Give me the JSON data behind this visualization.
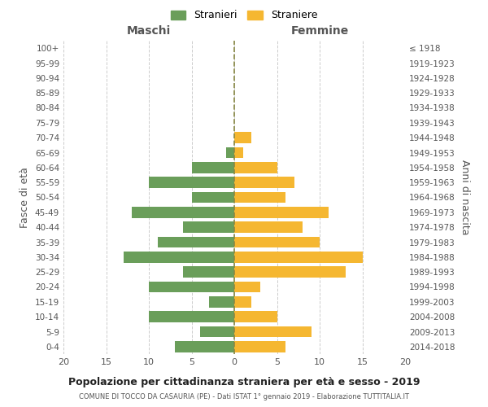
{
  "age_groups": [
    "0-4",
    "5-9",
    "10-14",
    "15-19",
    "20-24",
    "25-29",
    "30-34",
    "35-39",
    "40-44",
    "45-49",
    "50-54",
    "55-59",
    "60-64",
    "65-69",
    "70-74",
    "75-79",
    "80-84",
    "85-89",
    "90-94",
    "95-99",
    "100+"
  ],
  "birth_years": [
    "2014-2018",
    "2009-2013",
    "2004-2008",
    "1999-2003",
    "1994-1998",
    "1989-1993",
    "1984-1988",
    "1979-1983",
    "1974-1978",
    "1969-1973",
    "1964-1968",
    "1959-1963",
    "1954-1958",
    "1949-1953",
    "1944-1948",
    "1939-1943",
    "1934-1938",
    "1929-1933",
    "1924-1928",
    "1919-1923",
    "≤ 1918"
  ],
  "maschi": [
    7,
    4,
    10,
    3,
    10,
    6,
    13,
    9,
    6,
    12,
    5,
    10,
    5,
    1,
    0,
    0,
    0,
    0,
    0,
    0,
    0
  ],
  "femmine": [
    6,
    9,
    5,
    2,
    3,
    13,
    15,
    10,
    8,
    11,
    6,
    7,
    5,
    1,
    2,
    0,
    0,
    0,
    0,
    0,
    0
  ],
  "male_color": "#6a9e5a",
  "female_color": "#f5b731",
  "title_main": "Popolazione per cittadinanza straniera per età e sesso - 2019",
  "title_sub": "COMUNE DI TOCCO DA CASAURIA (PE) - Dati ISTAT 1° gennaio 2019 - Elaborazione TUTTITALIA.IT",
  "xlabel_left": "Maschi",
  "xlabel_right": "Femmine",
  "ylabel_left": "Fasce di età",
  "ylabel_right": "Anni di nascita",
  "legend_male": "Stranieri",
  "legend_female": "Straniere",
  "xlim": 20,
  "bg_color": "#ffffff",
  "grid_color": "#cccccc"
}
